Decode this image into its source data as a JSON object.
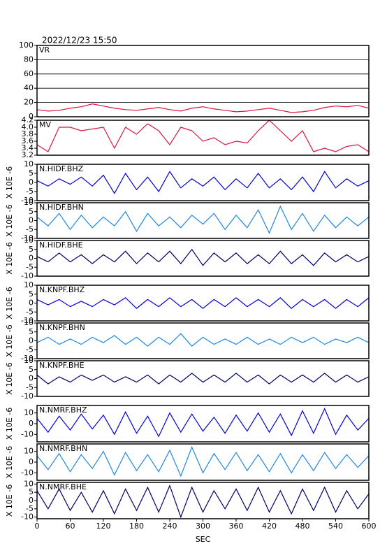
{
  "chart_data": [
    {
      "type": "line",
      "title": "2022/12/23 15:50",
      "label": "VR",
      "ylim": [
        0,
        100
      ],
      "yticks": [
        0,
        20,
        40,
        60,
        80,
        100
      ],
      "grid": true,
      "x": [
        0,
        20,
        40,
        60,
        80,
        100,
        120,
        140,
        160,
        180,
        200,
        220,
        240,
        260,
        280,
        300,
        320,
        340,
        360,
        380,
        400,
        420,
        440,
        460,
        480,
        500,
        520,
        540,
        560,
        580,
        600
      ],
      "series": [
        {
          "color": "#dc143c",
          "values": [
            10,
            8,
            9,
            12,
            14,
            18,
            15,
            12,
            10,
            9,
            11,
            13,
            10,
            8,
            12,
            14,
            11,
            9,
            7,
            8,
            10,
            12,
            9,
            6,
            7,
            9,
            13,
            15,
            14,
            16,
            12
          ]
        }
      ]
    },
    {
      "type": "line",
      "label": "MV",
      "ylim": [
        3.2,
        4.2
      ],
      "yticks": [
        3.2,
        3.4,
        3.6,
        3.8,
        {
          "value": 4.0,
          "label": "4.0"
        },
        4.2
      ],
      "grid": false,
      "x": [
        0,
        20,
        40,
        60,
        80,
        100,
        120,
        140,
        160,
        180,
        200,
        220,
        240,
        260,
        280,
        300,
        320,
        340,
        360,
        380,
        400,
        420,
        440,
        460,
        480,
        500,
        520,
        540,
        560,
        580,
        600
      ],
      "series": [
        {
          "color": "#dc143c",
          "values": [
            3.5,
            3.3,
            4.0,
            4.0,
            3.9,
            3.95,
            4.0,
            3.4,
            4.0,
            3.8,
            4.1,
            3.9,
            3.5,
            4.0,
            3.9,
            3.6,
            3.7,
            3.5,
            3.6,
            3.55,
            3.9,
            4.2,
            3.9,
            3.6,
            3.9,
            3.3,
            3.4,
            3.3,
            3.45,
            3.5,
            3.3
          ]
        }
      ]
    },
    {
      "type": "line",
      "label": "N.HIDF.BHZ",
      "ylabel": "X 10E -6",
      "ylim": [
        -10,
        10
      ],
      "yticks": [
        -10,
        -5,
        0,
        5,
        10
      ],
      "grid": false,
      "x": [
        0,
        20,
        40,
        60,
        80,
        100,
        120,
        140,
        160,
        180,
        200,
        220,
        240,
        260,
        280,
        300,
        320,
        340,
        360,
        380,
        400,
        420,
        440,
        460,
        480,
        500,
        520,
        540,
        560,
        580,
        600
      ],
      "series": [
        {
          "color": "#0000dd",
          "values": [
            1,
            -2,
            2,
            -1,
            3,
            -2,
            4,
            -6,
            5,
            -4,
            3,
            -5,
            6,
            -3,
            2,
            -2,
            3,
            -4,
            2,
            -3,
            5,
            -3,
            2,
            -4,
            3,
            -5,
            6,
            -3,
            2,
            -2,
            1
          ]
        }
      ]
    },
    {
      "type": "line",
      "label": "N.HIDF.BHN",
      "ylabel": "X 10E -6",
      "ylim": [
        -10,
        10
      ],
      "yticks": [
        -10,
        -5,
        0,
        5,
        10
      ],
      "grid": false,
      "x": [
        0,
        20,
        40,
        60,
        80,
        100,
        120,
        140,
        160,
        180,
        200,
        220,
        240,
        260,
        280,
        300,
        320,
        340,
        360,
        380,
        400,
        420,
        440,
        460,
        480,
        500,
        520,
        540,
        560,
        580,
        600
      ],
      "series": [
        {
          "color": "#1e88e5",
          "values": [
            2,
            -3,
            4,
            -5,
            3,
            -4,
            2,
            -3,
            5,
            -6,
            4,
            -3,
            2,
            -4,
            3,
            -2,
            4,
            -5,
            3,
            -4,
            6,
            -7,
            8,
            -5,
            4,
            -6,
            3,
            -4,
            2,
            -3,
            2
          ]
        }
      ]
    },
    {
      "type": "line",
      "label": "N.HIDF.BHE",
      "ylabel": "X 10E -6",
      "ylim": [
        -10,
        10
      ],
      "yticks": [
        -10,
        -5,
        0,
        5,
        10
      ],
      "grid": false,
      "x": [
        0,
        20,
        40,
        60,
        80,
        100,
        120,
        140,
        160,
        180,
        200,
        220,
        240,
        260,
        280,
        300,
        320,
        340,
        360,
        380,
        400,
        420,
        440,
        460,
        480,
        500,
        520,
        540,
        560,
        580,
        600
      ],
      "series": [
        {
          "color": "#000066",
          "values": [
            1,
            -2,
            3,
            -2,
            2,
            -3,
            2,
            -2,
            4,
            -3,
            3,
            -2,
            4,
            -3,
            5,
            -4,
            3,
            -2,
            3,
            -3,
            2,
            -3,
            4,
            -3,
            2,
            -4,
            3,
            -2,
            2,
            -2,
            1
          ]
        }
      ]
    },
    {
      "type": "line",
      "label": "N.KNPF.BHZ",
      "ylabel": "X 10E -6",
      "ylim": [
        -10,
        10
      ],
      "yticks": [
        -10,
        -5,
        0,
        5,
        10
      ],
      "grid": false,
      "x": [
        0,
        20,
        40,
        60,
        80,
        100,
        120,
        140,
        160,
        180,
        200,
        220,
        240,
        260,
        280,
        300,
        320,
        340,
        360,
        380,
        400,
        420,
        440,
        460,
        480,
        500,
        520,
        540,
        560,
        580,
        600
      ],
      "series": [
        {
          "color": "#0000dd",
          "values": [
            2,
            -1,
            2,
            -2,
            1,
            -2,
            2,
            -1,
            3,
            -3,
            2,
            -2,
            3,
            -2,
            2,
            -3,
            2,
            -2,
            3,
            -2,
            2,
            -2,
            3,
            -3,
            2,
            -2,
            2,
            -3,
            2,
            -2,
            3
          ]
        }
      ]
    },
    {
      "type": "line",
      "label": "N.KNPF.BHN",
      "ylabel": "X 10E -6",
      "ylim": [
        -10,
        10
      ],
      "yticks": [
        -10,
        -5,
        0,
        5,
        10
      ],
      "grid": false,
      "x": [
        0,
        20,
        40,
        60,
        80,
        100,
        120,
        140,
        160,
        180,
        200,
        220,
        240,
        260,
        280,
        300,
        320,
        340,
        360,
        380,
        400,
        420,
        440,
        460,
        480,
        500,
        520,
        540,
        560,
        580,
        600
      ],
      "series": [
        {
          "color": "#1e88e5",
          "values": [
            -1,
            2,
            -2,
            1,
            -2,
            2,
            -1,
            3,
            -2,
            2,
            -3,
            2,
            -2,
            4,
            -3,
            2,
            -2,
            1,
            -2,
            2,
            -2,
            1,
            -2,
            2,
            -1,
            2,
            -2,
            1,
            -1,
            2,
            -1
          ]
        }
      ]
    },
    {
      "type": "line",
      "label": "N.KNPF.BHE",
      "ylabel": "X 10E -6",
      "ylim": [
        -10,
        10
      ],
      "yticks": [
        -10,
        -5,
        0,
        5,
        10
      ],
      "grid": false,
      "x": [
        0,
        20,
        40,
        60,
        80,
        100,
        120,
        140,
        160,
        180,
        200,
        220,
        240,
        260,
        280,
        300,
        320,
        340,
        360,
        380,
        400,
        420,
        440,
        460,
        480,
        500,
        520,
        540,
        560,
        580,
        600
      ],
      "series": [
        {
          "color": "#000066",
          "values": [
            2,
            -3,
            1,
            -2,
            2,
            -1,
            2,
            -2,
            1,
            -2,
            2,
            -3,
            2,
            -2,
            3,
            -2,
            2,
            -2,
            3,
            -2,
            2,
            -3,
            2,
            -2,
            2,
            -2,
            3,
            -2,
            2,
            -2,
            1
          ]
        }
      ]
    },
    {
      "type": "line",
      "label": "N.NMRF.BHZ",
      "ylabel": "X 10E -6",
      "ylim": [
        -17,
        17
      ],
      "yticks": [
        -10,
        0,
        10
      ],
      "grid": false,
      "x": [
        0,
        20,
        40,
        60,
        80,
        100,
        120,
        140,
        160,
        180,
        200,
        220,
        240,
        260,
        280,
        300,
        320,
        340,
        360,
        380,
        400,
        420,
        440,
        460,
        480,
        500,
        520,
        540,
        560,
        580,
        600
      ],
      "series": [
        {
          "color": "#0000dd",
          "values": [
            5,
            -8,
            7,
            -6,
            9,
            -5,
            8,
            -10,
            11,
            -9,
            7,
            -12,
            10,
            -8,
            9,
            -7,
            6,
            -9,
            8,
            -7,
            10,
            -8,
            9,
            -11,
            12,
            -9,
            14,
            -10,
            8,
            -6,
            5
          ]
        }
      ]
    },
    {
      "type": "line",
      "label": "N.NMRF.BHN",
      "ylabel": "X 10E -6",
      "ylim": [
        -17,
        17
      ],
      "yticks": [
        -10,
        0,
        10
      ],
      "grid": false,
      "x": [
        0,
        20,
        40,
        60,
        80,
        100,
        120,
        140,
        160,
        180,
        200,
        220,
        240,
        260,
        280,
        300,
        320,
        340,
        360,
        380,
        400,
        420,
        440,
        460,
        480,
        500,
        520,
        540,
        560,
        580,
        600
      ],
      "series": [
        {
          "color": "#1e88e5",
          "values": [
            6,
            -7,
            8,
            -9,
            7,
            -6,
            10,
            -12,
            9,
            -8,
            7,
            -9,
            11,
            -13,
            14,
            -10,
            8,
            -7,
            9,
            -8,
            7,
            -9,
            8,
            -10,
            7,
            -8,
            9,
            -6,
            7,
            -5,
            6
          ]
        }
      ]
    },
    {
      "type": "line",
      "label": "N.NMRF.BHE",
      "ylabel": "X 10E -6",
      "ylim": [
        -11,
        11
      ],
      "yticks": [
        -10,
        -5,
        0,
        5,
        10
      ],
      "grid": false,
      "xlabel": "SEC",
      "xlim": [
        0,
        600
      ],
      "xticks": [
        0,
        60,
        120,
        180,
        240,
        300,
        360,
        420,
        480,
        540,
        600
      ],
      "x": [
        0,
        20,
        40,
        60,
        80,
        100,
        120,
        140,
        160,
        180,
        200,
        220,
        240,
        260,
        280,
        300,
        320,
        340,
        360,
        380,
        400,
        420,
        440,
        460,
        480,
        500,
        520,
        540,
        560,
        580,
        600
      ],
      "series": [
        {
          "color": "#000066",
          "values": [
            6,
            -5,
            7,
            -6,
            5,
            -7,
            6,
            -8,
            7,
            -6,
            8,
            -7,
            9,
            -10,
            8,
            -7,
            6,
            -5,
            7,
            -6,
            8,
            -7,
            6,
            -8,
            7,
            -6,
            8,
            -7,
            6,
            -5,
            4
          ]
        }
      ]
    }
  ]
}
